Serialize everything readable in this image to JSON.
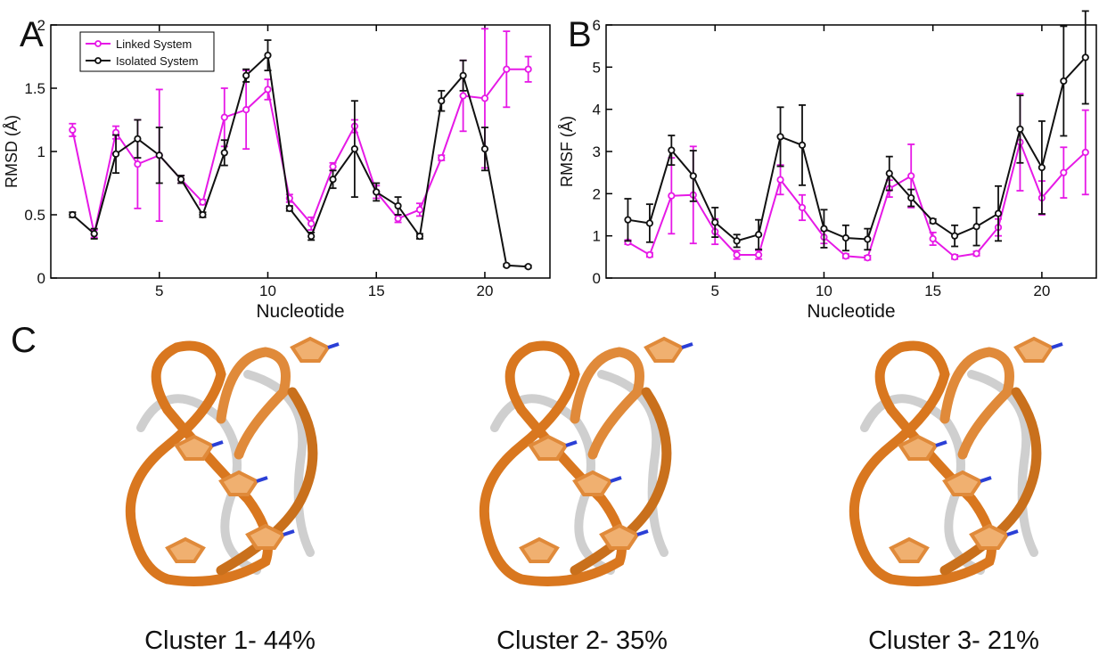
{
  "chart_data": [
    {
      "type": "line",
      "label": "A",
      "xlabel": "Nucleotide",
      "ylabel": "RMSD (Å)",
      "x": [
        1,
        2,
        3,
        4,
        5,
        6,
        7,
        8,
        9,
        10,
        11,
        12,
        13,
        14,
        15,
        16,
        17,
        18,
        19,
        20,
        21,
        22
      ],
      "xlim": [
        0,
        23
      ],
      "xticks": [
        5,
        10,
        15,
        20
      ],
      "ylim": [
        0,
        2
      ],
      "yticks": [
        0,
        0.5,
        1,
        1.5,
        2
      ],
      "legend": "upper left",
      "series": [
        {
          "name": "Linked System",
          "color": "#e619e6",
          "values": [
            1.17,
            0.35,
            1.15,
            0.9,
            0.97,
            0.78,
            0.6,
            1.27,
            1.33,
            1.49,
            0.63,
            0.43,
            0.88,
            1.2,
            0.68,
            0.47,
            0.54,
            0.95,
            1.44,
            1.42,
            1.65,
            1.65
          ],
          "errors": [
            0.05,
            0.03,
            0.05,
            0.35,
            0.52,
            0.03,
            0.02,
            0.23,
            0.31,
            0.08,
            0.03,
            0.05,
            0.03,
            0.05,
            0.05,
            0.03,
            0.05,
            0.02,
            0.28,
            0.55,
            0.3,
            0.1
          ]
        },
        {
          "name": "Isolated System",
          "color": "#111111",
          "values": [
            0.5,
            0.35,
            0.98,
            1.1,
            0.97,
            0.78,
            0.5,
            0.99,
            1.6,
            1.76,
            0.55,
            0.33,
            0.78,
            1.02,
            0.68,
            0.57,
            0.33,
            1.4,
            1.6,
            1.02,
            0.1,
            0.09
          ],
          "errors": [
            0.02,
            0.04,
            0.15,
            0.15,
            0.22,
            0.03,
            0.02,
            0.1,
            0.05,
            0.12,
            0.02,
            0.03,
            0.07,
            0.38,
            0.07,
            0.07,
            0.02,
            0.08,
            0.12,
            0.17,
            0.01,
            0.01
          ]
        }
      ]
    },
    {
      "type": "line",
      "label": "B",
      "xlabel": "Nucleotide",
      "ylabel": "RMSF (Å)",
      "x": [
        1,
        2,
        3,
        4,
        5,
        6,
        7,
        8,
        9,
        10,
        11,
        12,
        13,
        14,
        15,
        16,
        17,
        18,
        19,
        20,
        21,
        22
      ],
      "xlim": [
        0,
        22.5
      ],
      "xticks": [
        5,
        10,
        15,
        20
      ],
      "ylim": [
        0,
        6
      ],
      "yticks": [
        0,
        1,
        2,
        3,
        4,
        5,
        6
      ],
      "series": [
        {
          "color": "#e619e6",
          "values": [
            0.85,
            0.55,
            1.95,
            1.97,
            1.1,
            0.55,
            0.55,
            2.33,
            1.67,
            0.97,
            0.52,
            0.48,
            2.12,
            2.42,
            0.93,
            0.5,
            0.58,
            1.2,
            3.22,
            1.9,
            2.5,
            2.98
          ],
          "errors": [
            0.05,
            0.05,
            0.9,
            1.15,
            0.3,
            0.1,
            0.1,
            0.35,
            0.3,
            0.15,
            0.05,
            0.05,
            0.2,
            0.75,
            0.15,
            0.05,
            0.05,
            0.2,
            1.15,
            0.4,
            0.6,
            1.0
          ]
        },
        {
          "color": "#111111",
          "values": [
            1.38,
            1.3,
            3.03,
            2.42,
            1.32,
            0.88,
            1.03,
            3.35,
            3.15,
            1.17,
            0.95,
            0.92,
            2.48,
            1.9,
            1.35,
            1.0,
            1.22,
            1.53,
            3.53,
            2.62,
            4.67,
            5.23
          ],
          "errors": [
            0.5,
            0.45,
            0.35,
            0.6,
            0.35,
            0.15,
            0.35,
            0.7,
            0.95,
            0.45,
            0.3,
            0.25,
            0.4,
            0.2,
            0.05,
            0.25,
            0.45,
            0.65,
            0.8,
            1.1,
            1.3,
            1.1
          ]
        }
      ]
    }
  ],
  "panel_c": {
    "label": "C",
    "captions": [
      "Cluster 1- 44%",
      "Cluster 2- 35%",
      "Cluster 3- 21%"
    ]
  }
}
